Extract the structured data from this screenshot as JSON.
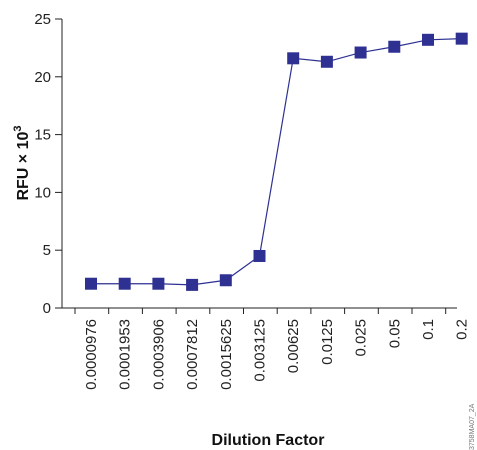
{
  "chart_data": {
    "type": "line",
    "xlabel": "Dilution Factor",
    "ylabel": "RFU × 10",
    "ylabel_superscript": "3",
    "categories": [
      "0.0000976",
      "0.0001953",
      "0.0003906",
      "0.0007812",
      "0.0015625",
      "0.003125",
      "0.00625",
      "0.0125",
      "0.025",
      "0.05",
      "0.1",
      "0.2"
    ],
    "series": [
      {
        "values": [
          2.1,
          2.1,
          2.1,
          2.0,
          2.4,
          4.5,
          21.6,
          21.3,
          22.1,
          22.6,
          23.2,
          23.3
        ],
        "color": "#2e3192",
        "marker": "square"
      }
    ],
    "ylim": [
      0,
      25
    ],
    "yticks": [
      "0",
      "5",
      "10",
      "15",
      "20",
      "25"
    ],
    "grid": false,
    "legend": "none"
  },
  "figure_code": "3758MA07_2A"
}
